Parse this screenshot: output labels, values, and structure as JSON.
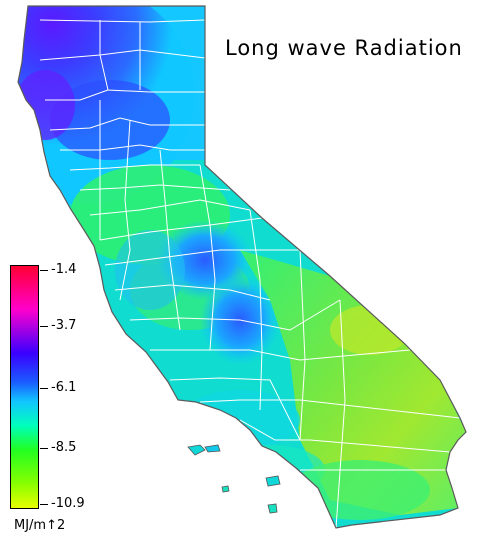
{
  "title": "Long wave Radiation",
  "legend": {
    "units": "MJ/m↑2",
    "ticks": [
      "-1.4",
      "-3.7",
      "-6.1",
      "-8.5",
      "-10.9"
    ],
    "scale_colors": [
      "#ff0033",
      "#ff00cc",
      "#6a00ff",
      "#1a3cff",
      "#12b6ff",
      "#00ffcc",
      "#22ff22",
      "#88ff00",
      "#e8ff00"
    ]
  },
  "map": {
    "region": "California",
    "colors": {
      "north_coast": "#3c3cff",
      "coast_dark": "#5a1aff",
      "central_valley": "#2aeb70",
      "sierra": "#2fa5ff",
      "desert": "#7de83a",
      "south": "#3df070",
      "county_lines": "#ffffff",
      "outline": "#6a6a6a"
    }
  }
}
